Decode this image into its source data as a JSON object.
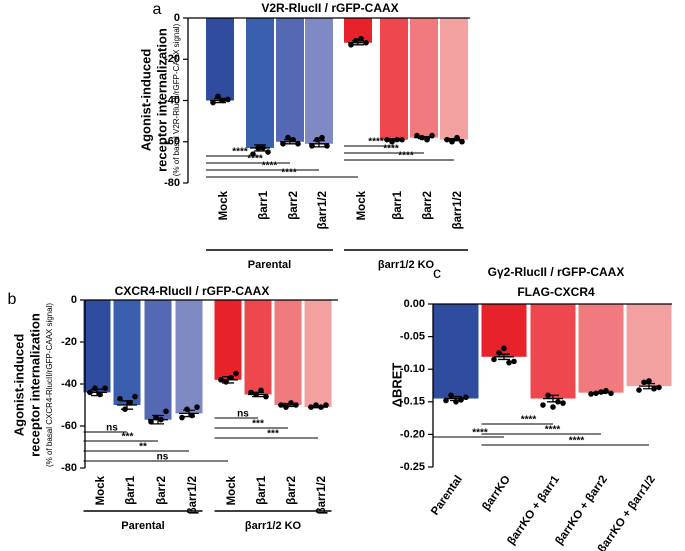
{
  "chart_data": [
    {
      "type": "bar",
      "panel": "a",
      "title": "V2R-RlucII / rGFP-CAAX",
      "ylabel": [
        "Agonist-induced",
        "receptor internalization"
      ],
      "ylabel_note": "(% of basal V2R-RlucII/rGFP-CAAX signal)",
      "categories": [
        "Mock",
        "βarr1",
        "βarr2",
        "βarr1/2",
        "Mock",
        "βarr1",
        "βarr2",
        "βarr1/2"
      ],
      "values": [
        -40,
        -63,
        -60,
        -61,
        -12,
        -59,
        -58,
        -59
      ],
      "errors": [
        1,
        1.5,
        1,
        1.5,
        1,
        0.5,
        0.5,
        0.5
      ],
      "points": [
        [
          -41,
          -38,
          -40,
          -39.5
        ],
        [
          -66,
          -63,
          -63,
          -65
        ],
        [
          -61,
          -58,
          -59,
          -61
        ],
        [
          -62,
          -59,
          -58,
          -62
        ],
        [
          -13,
          -11,
          -10,
          -12
        ],
        [
          -59,
          -60,
          -59,
          -59
        ],
        [
          -57,
          -58,
          -59,
          -57
        ],
        [
          -59,
          -60,
          -58,
          -60
        ]
      ],
      "colors": [
        "#2f4c9e",
        "#3a5fae",
        "#5568b3",
        "#7f89c4",
        "#e8222a",
        "#ee484e",
        "#f07a7d",
        "#f3a0a0"
      ],
      "groups": [
        {
          "label": "Parental",
          "from": 0,
          "to": 3
        },
        {
          "label": "βarr1/2 KO",
          "from": 4,
          "to": 7
        }
      ],
      "comparisons": [
        {
          "label": "****",
          "from": 0,
          "to": 1
        },
        {
          "label": "****",
          "from": 0,
          "to": 2
        },
        {
          "label": "****",
          "from": 0,
          "to": 3
        },
        {
          "label": "****",
          "from": 0,
          "to": 4
        },
        {
          "label": "****",
          "from": 4,
          "to": 5
        },
        {
          "label": "****",
          "from": 4,
          "to": 6
        },
        {
          "label": "****",
          "from": 4,
          "to": 7
        }
      ],
      "ylim": [
        -80,
        0
      ],
      "yticks": [
        0,
        -20,
        -40,
        -60,
        -80
      ]
    },
    {
      "type": "bar",
      "panel": "b",
      "title": "CXCR4-RlucII / rGFP-CAAX",
      "ylabel": [
        "Agonist-induced",
        "receptor internalization"
      ],
      "ylabel_note": "(% of basal CXCR4-RlucII/rGFP-CAAX signal)",
      "categories": [
        "Mock",
        "βarr1",
        "βarr2",
        "βarr1/2",
        "Mock",
        "βarr1",
        "βarr2",
        "βarr1/2"
      ],
      "values": [
        -44,
        -50,
        -57,
        -54,
        -38,
        -45,
        -50,
        -51
      ],
      "errors": [
        1.5,
        2,
        2,
        1.5,
        1.5,
        1,
        0.7,
        0.3
      ],
      "points": [
        [
          -44,
          -42,
          -45,
          -42
        ],
        [
          -47,
          -52,
          -49,
          -46
        ],
        [
          -58,
          -56,
          -57,
          -53
        ],
        [
          -56,
          -52,
          -55,
          -51
        ],
        [
          -38,
          -39,
          -37,
          -35
        ],
        [
          -44,
          -45,
          -43,
          -46
        ],
        [
          -50,
          -51,
          -49,
          -50
        ],
        [
          -51,
          -50,
          -51,
          -50
        ]
      ],
      "colors": [
        "#2f4c9e",
        "#3a5fae",
        "#5568b3",
        "#7f89c4",
        "#e8222a",
        "#ee484e",
        "#f07a7d",
        "#f3a0a0"
      ],
      "groups": [
        {
          "label": "Parental",
          "from": 0,
          "to": 3
        },
        {
          "label": "βarr1/2 KO",
          "from": 4,
          "to": 7
        }
      ],
      "comparisons": [
        {
          "label": "ns",
          "from": 0,
          "to": 1
        },
        {
          "label": "***",
          "from": 0,
          "to": 2
        },
        {
          "label": "**",
          "from": 0,
          "to": 3
        },
        {
          "label": "ns",
          "from": 0,
          "to": 4
        },
        {
          "label": "ns",
          "from": 4,
          "to": 5
        },
        {
          "label": "***",
          "from": 4,
          "to": 6
        },
        {
          "label": "***",
          "from": 4,
          "to": 7
        }
      ],
      "ylim": [
        -80,
        0
      ],
      "yticks": [
        0,
        -20,
        -40,
        -60,
        -80
      ]
    },
    {
      "type": "bar",
      "panel": "c",
      "title": "Gγ2-RlucII / rGFP-CAAX",
      "subtitle": "FLAG-CXCR4",
      "ylabel": [
        "ΔBRET"
      ],
      "categories": [
        "Parental",
        "βarrKO",
        "βarrKO + βarr1",
        "βarrKO + βarr2",
        "βarrKO + βarr1/2"
      ],
      "values": [
        -0.145,
        -0.081,
        -0.145,
        -0.136,
        -0.126
      ],
      "errors": [
        0.003,
        0.004,
        0.005,
        0.001,
        0.004
      ],
      "points": [
        [
          -0.148,
          -0.14,
          -0.15,
          -0.147,
          -0.143
        ],
        [
          -0.085,
          -0.075,
          -0.068,
          -0.09,
          -0.088
        ],
        [
          -0.155,
          -0.14,
          -0.158,
          -0.15,
          -0.152
        ],
        [
          -0.138,
          -0.137,
          -0.135,
          -0.133,
          -0.137
        ],
        [
          -0.132,
          -0.12,
          -0.118,
          -0.13,
          -0.128
        ]
      ],
      "colors": [
        "#2f4c9e",
        "#e8222a",
        "#ee484e",
        "#f07a7d",
        "#f3a0a0"
      ],
      "comparisons": [
        {
          "label": "****",
          "from": 0,
          "to": 1
        },
        {
          "label": "****",
          "from": 1,
          "to": 2
        },
        {
          "label": "****",
          "from": 1,
          "to": 3
        },
        {
          "label": "****",
          "from": 1,
          "to": 4
        }
      ],
      "ylim": [
        -0.25,
        0
      ],
      "yticks": [
        {
          "value": 0,
          "label": "0.00"
        },
        {
          "value": -0.05,
          "label": "-0.05"
        },
        {
          "value": -0.1,
          "label": "-0.10"
        },
        {
          "value": -0.15,
          "label": "-0.15"
        },
        {
          "value": -0.2,
          "label": "-0.20"
        },
        {
          "value": -0.25,
          "label": "-0.25"
        }
      ]
    }
  ]
}
